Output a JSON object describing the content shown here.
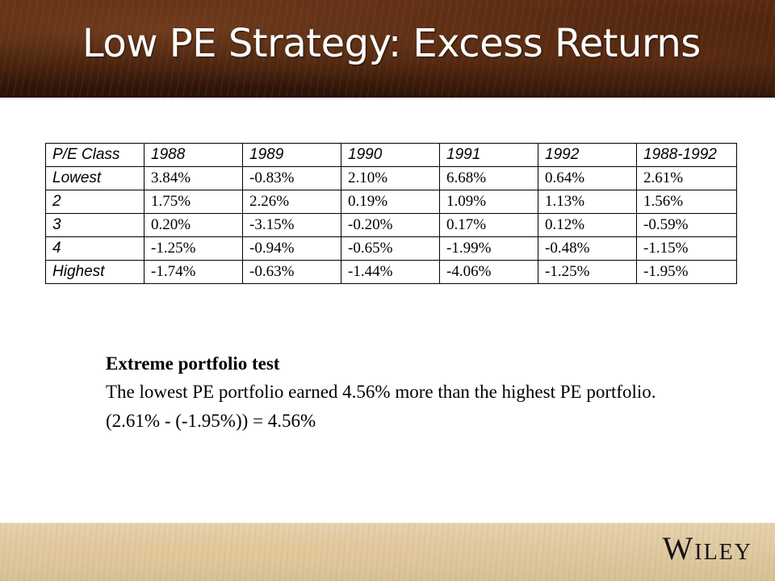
{
  "slide": {
    "title": "Low PE Strategy: Excess Returns",
    "logo_text": "Wiley"
  },
  "table": {
    "header": [
      "P/E Class",
      "1988",
      "1989",
      "1990",
      "1991",
      "1992",
      "1988-1992"
    ],
    "rows": [
      [
        "Lowest",
        "3.84%",
        "-0.83%",
        "2.10%",
        "6.68%",
        "0.64%",
        "2.61%"
      ],
      [
        "2",
        "1.75%",
        "2.26%",
        "0.19%",
        "1.09%",
        "1.13%",
        "1.56%"
      ],
      [
        "3",
        "0.20%",
        "-3.15%",
        "-0.20%",
        "0.17%",
        "0.12%",
        "-0.59%"
      ],
      [
        "4",
        "-1.25%",
        "-0.94%",
        "-0.65%",
        "-1.99%",
        "-0.48%",
        "-1.15%"
      ],
      [
        "Highest",
        "-1.74%",
        "-0.63%",
        "-1.44%",
        "-4.06%",
        "-1.25%",
        "-1.95%"
      ]
    ]
  },
  "notes": {
    "heading": "Extreme portfolio test",
    "body": "The lowest PE portfolio earned 4.56% more than the highest PE portfolio. (2.61% - (-1.95%)) = 4.56%"
  }
}
